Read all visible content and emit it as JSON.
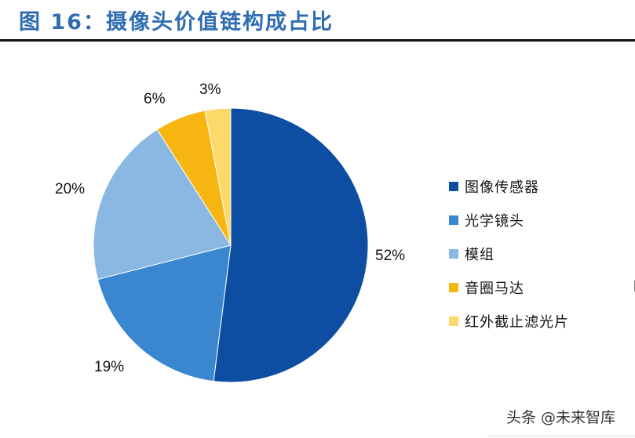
{
  "header": {
    "title": "图 16：摄像头价值链构成占比"
  },
  "chart_data": {
    "type": "pie",
    "title": "摄像头价值链构成占比",
    "categories": [
      "图像传感器",
      "光学镜头",
      "模组",
      "音圈马达",
      "红外截止滤光片"
    ],
    "values": [
      52,
      19,
      20,
      6,
      3
    ],
    "labels": [
      "52%",
      "19%",
      "20%",
      "6%",
      "3%"
    ],
    "colors": [
      "#0d4ea3",
      "#3a86cf",
      "#8bb8e2",
      "#f7b512",
      "#fdd96a"
    ],
    "start_angle": "12 o'clock, clockwise",
    "legend_position": "right"
  },
  "legend": {
    "items": [
      {
        "label": "图像传感器",
        "color": "#0d4ea3"
      },
      {
        "label": "光学镜头",
        "color": "#3a86cf"
      },
      {
        "label": "模组",
        "color": "#8bb8e2"
      },
      {
        "label": "音圈马达",
        "color": "#f7b512"
      },
      {
        "label": "红外截止滤光片",
        "color": "#fdd96a"
      }
    ]
  },
  "watermark": {
    "text": "头条 @未来智库"
  }
}
